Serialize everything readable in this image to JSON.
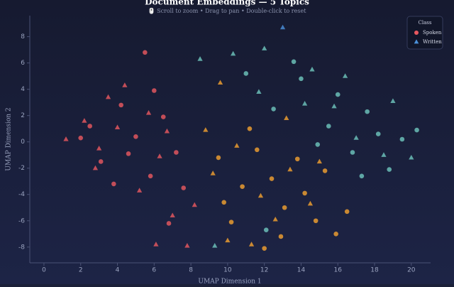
{
  "chart_data": {
    "type": "scatter",
    "title": "Document Embeddings — 5 Topics",
    "subtitle": "🖱️ Scroll to zoom • Drag to pan • Double-click to reset",
    "x_label": "UMAP Dimension 1",
    "y_label": "UMAP Dimension 2",
    "legend_title": "Class",
    "legend_position": "upper right",
    "xlim": [
      -0.77,
      21.05
    ],
    "xticks": [
      0,
      2,
      4,
      6,
      8,
      10,
      12,
      14,
      16,
      18,
      20
    ],
    "ylim": [
      -9.2,
      9.6
    ],
    "yticks": [
      -8,
      -6,
      -4,
      -2,
      0,
      2,
      4,
      6,
      8
    ],
    "series": [
      {
        "name": "Spoken",
        "marker": "circle",
        "color": "#e8585f",
        "x": [
          2.5,
          3.1,
          4.2,
          5.0,
          5.8,
          6.5,
          7.2,
          3.8,
          6.0,
          4.6,
          7.6,
          2.0,
          5.5,
          6.8,
          9.5,
          10.8,
          11.6,
          12.4,
          13.1,
          14.2,
          15.3,
          10.2,
          12.9,
          14.8,
          16.5,
          11.2,
          13.8,
          9.8,
          12.0,
          15.9,
          12.5,
          14.0,
          15.5,
          16.8,
          18.2,
          19.5,
          17.3,
          13.6,
          11.0,
          18.8,
          16.0,
          14.9,
          20.3,
          12.1,
          17.6
        ],
        "values": [
          1.2,
          -1.5,
          2.8,
          0.4,
          -2.6,
          1.9,
          -0.8,
          -3.2,
          3.9,
          -0.9,
          -3.5,
          0.3,
          6.8,
          -6.2,
          -1.2,
          -3.4,
          -0.6,
          -2.8,
          -5.0,
          -3.9,
          -2.2,
          -6.1,
          -7.2,
          -6.0,
          -5.3,
          1.0,
          -1.3,
          -4.6,
          -8.1,
          -7.0,
          2.5,
          4.8,
          1.2,
          -0.8,
          0.6,
          0.2,
          -2.6,
          6.1,
          5.2,
          -2.1,
          3.6,
          -0.2,
          0.9,
          -6.7,
          2.3
        ],
        "colors": [
          "#e8585f",
          "#e8585f",
          "#e8585f",
          "#e8585f",
          "#e8585f",
          "#e8585f",
          "#e8585f",
          "#e8585f",
          "#e8585f",
          "#e8585f",
          "#e8585f",
          "#e8585f",
          "#e8585f",
          "#e8585f",
          "#f0a030",
          "#f0a030",
          "#f0a030",
          "#f0a030",
          "#f0a030",
          "#f0a030",
          "#f0a030",
          "#f0a030",
          "#f0a030",
          "#f0a030",
          "#f0a030",
          "#f0a030",
          "#f0a030",
          "#f0a030",
          "#f0a030",
          "#f0a030",
          "#6ec4bc",
          "#6ec4bc",
          "#6ec4bc",
          "#6ec4bc",
          "#6ec4bc",
          "#6ec4bc",
          "#6ec4bc",
          "#6ec4bc",
          "#6ec4bc",
          "#6ec4bc",
          "#6ec4bc",
          "#6ec4bc",
          "#6ec4bc",
          "#6ec4bc",
          "#6ec4bc"
        ]
      },
      {
        "name": "Written",
        "marker": "triangle",
        "color": "#4a90d9",
        "x": [
          1.2,
          2.8,
          3.5,
          4.4,
          5.2,
          6.3,
          7.0,
          7.8,
          4.0,
          2.2,
          6.7,
          5.7,
          3.0,
          8.2,
          6.1,
          9.2,
          10.5,
          11.8,
          13.4,
          10.0,
          12.6,
          14.5,
          8.8,
          11.3,
          15.0,
          9.6,
          13.2,
          8.5,
          10.3,
          12.0,
          13.0,
          14.6,
          15.8,
          17.0,
          18.5,
          19.0,
          16.4,
          11.7,
          9.3,
          20.0,
          14.2
        ],
        "values": [
          0.2,
          -2.0,
          3.4,
          4.3,
          -3.7,
          -1.1,
          -5.6,
          -7.9,
          1.1,
          1.6,
          0.8,
          2.2,
          -0.5,
          -4.8,
          -7.8,
          -2.4,
          -0.3,
          -4.1,
          -2.1,
          -7.5,
          -5.9,
          -4.7,
          0.9,
          -7.8,
          -1.5,
          4.5,
          1.8,
          6.3,
          6.7,
          7.1,
          8.7,
          5.5,
          2.7,
          0.3,
          -1.0,
          3.1,
          5.0,
          3.8,
          -7.9,
          -1.2,
          2.9
        ],
        "colors": [
          "#e8585f",
          "#e8585f",
          "#e8585f",
          "#e8585f",
          "#e8585f",
          "#e8585f",
          "#e8585f",
          "#e8585f",
          "#e8585f",
          "#e8585f",
          "#e8585f",
          "#e8585f",
          "#e8585f",
          "#e8585f",
          "#e8585f",
          "#f0a030",
          "#f0a030",
          "#f0a030",
          "#f0a030",
          "#f0a030",
          "#f0a030",
          "#f0a030",
          "#f0a030",
          "#f0a030",
          "#f0a030",
          "#f0a030",
          "#f0a030",
          "#6ec4bc",
          "#6ec4bc",
          "#6ec4bc",
          "#4a90d9",
          "#6ec4bc",
          "#6ec4bc",
          "#6ec4bc",
          "#6ec4bc",
          "#6ec4bc",
          "#6ec4bc",
          "#6ec4bc",
          "#6ec4bc",
          "#6ec4bc",
          "#6ec4bc"
        ]
      }
    ]
  }
}
